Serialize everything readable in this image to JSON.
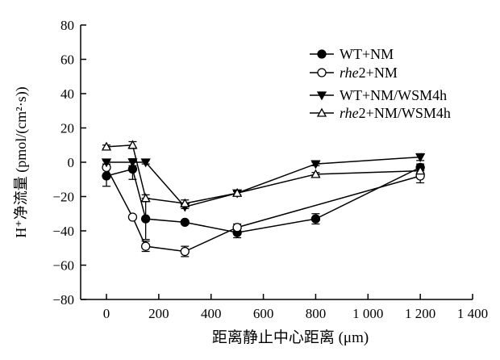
{
  "chart_data": {
    "type": "line",
    "title": "",
    "xlabel": "距离静止中心距离 (μm)",
    "ylabel": "H⁺净流量 (pmol/(cm²·s))",
    "xlim": [
      -50,
      1400
    ],
    "ylim": [
      -80,
      80
    ],
    "xticks": [
      0,
      200,
      400,
      600,
      800,
      1000,
      1200,
      1400
    ],
    "xtick_labels": [
      "0",
      "200",
      "400",
      "600",
      "800",
      "1 000",
      "1 200",
      "1 400"
    ],
    "yticks": [
      -80,
      -60,
      -40,
      -20,
      0,
      20,
      40,
      60,
      80
    ],
    "ytick_labels": [
      "−80",
      "−60",
      "−40",
      "−20",
      "0",
      "20",
      "40",
      "60",
      "80"
    ],
    "grid": false,
    "legend_position": "top-right",
    "series": [
      {
        "name": "WT+NM",
        "marker": "filled-circle",
        "x": [
          0,
          100,
          150,
          300,
          500,
          800,
          1200
        ],
        "y": [
          -8,
          -4,
          -33,
          -35,
          -41,
          -33,
          -3
        ],
        "err": [
          6,
          6,
          12,
          1,
          3,
          3,
          2
        ]
      },
      {
        "name": "rhe2+NM",
        "marker": "open-circle",
        "x": [
          0,
          100,
          150,
          300,
          500,
          1200
        ],
        "y": [
          -3,
          -32,
          -49,
          -52,
          -38,
          -8
        ],
        "err": [
          1,
          1,
          3,
          3,
          2,
          4
        ]
      },
      {
        "name": "WT+NM/WSM4h",
        "marker": "filled-triangle-down",
        "x": [
          0,
          100,
          150,
          300,
          500,
          800,
          1200
        ],
        "y": [
          0,
          0,
          0,
          -26,
          -18,
          -1,
          3
        ],
        "err": [
          1,
          2,
          1,
          1,
          1,
          1,
          2
        ]
      },
      {
        "name": "rhe2+NM/WSM4h",
        "marker": "open-triangle-up",
        "x": [
          0,
          100,
          150,
          300,
          500,
          800,
          1200
        ],
        "y": [
          9,
          10,
          -21,
          -24,
          -18,
          -7,
          -5
        ],
        "err": [
          1,
          2,
          2,
          2,
          1,
          1,
          1
        ]
      }
    ]
  }
}
